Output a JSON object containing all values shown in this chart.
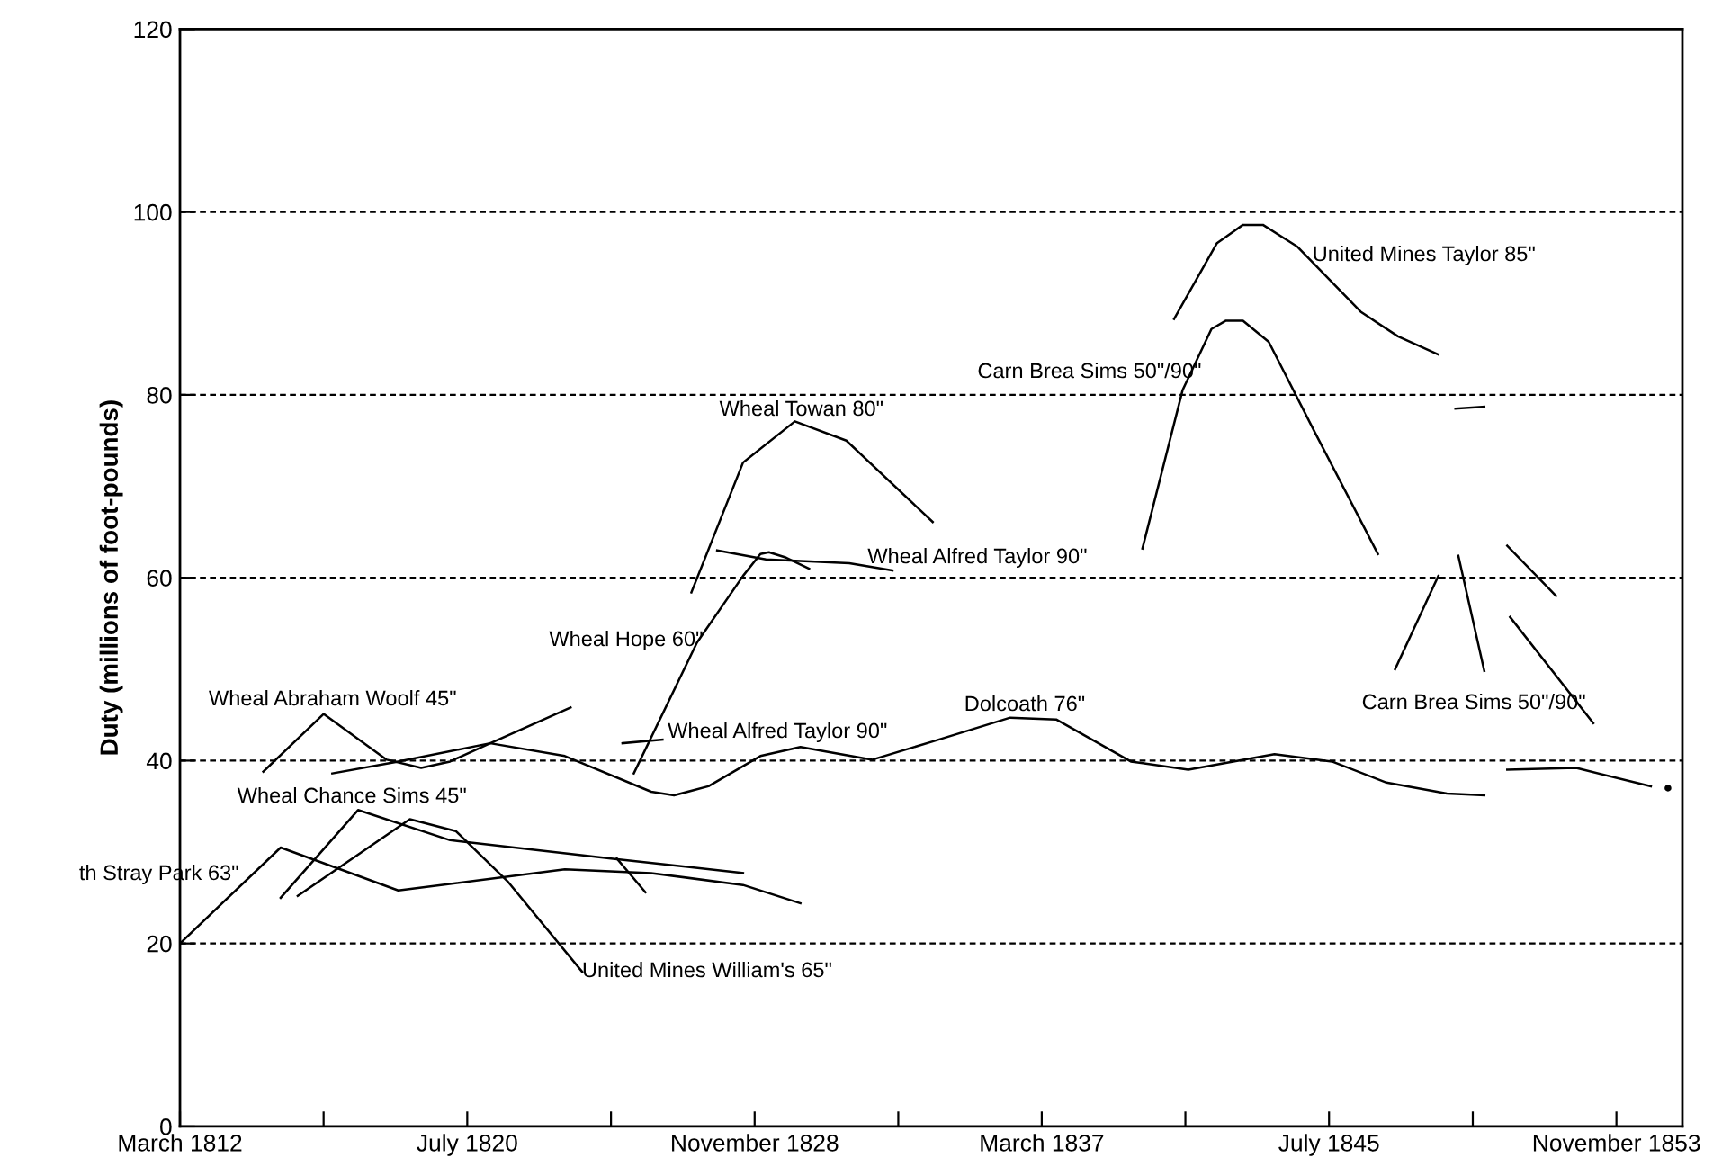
{
  "chart_data": {
    "type": "line",
    "ylabel": "Duty (millions of foot-pounds)",
    "xlim": [
      "1812-03",
      "1855-10"
    ],
    "xticks": [
      {
        "value": "1812-03",
        "label": "March 1812"
      },
      {
        "value": "1816-05",
        "label": null
      },
      {
        "value": "1820-07",
        "label": "July 1820"
      },
      {
        "value": "1824-09",
        "label": null
      },
      {
        "value": "1828-11",
        "label": "November 1828"
      },
      {
        "value": "1833-01",
        "label": null
      },
      {
        "value": "1837-03",
        "label": "March 1837"
      },
      {
        "value": "1841-05",
        "label": null
      },
      {
        "value": "1845-07",
        "label": "July 1845"
      },
      {
        "value": "1849-09",
        "label": null
      },
      {
        "value": "1853-11",
        "label": "November 1853"
      }
    ],
    "ylim": [
      0,
      120
    ],
    "yticks": [
      0,
      20,
      40,
      60,
      80,
      100,
      120
    ],
    "grid": "y",
    "line_style": "solid",
    "series": [
      {
        "color": "#000000",
        "x": [
          "1812-03",
          "1815-02",
          "1818-07",
          "1823-05",
          "1825-11",
          "1828-07",
          "1830-03"
        ],
        "values": [
          20,
          30.5,
          25.8,
          28.1,
          27.7,
          26.4,
          24.4
        ]
      },
      {
        "color": "#000000",
        "x": [
          "1815-02",
          "1817-05",
          "1820-01",
          "1824-09",
          "1828-07"
        ],
        "values": [
          25,
          34.6,
          31.3,
          29.3,
          27.7
        ]
      },
      {
        "color": "#000000",
        "x": [
          "1824-11",
          "1825-09"
        ],
        "values": [
          29.3,
          25.6
        ]
      },
      {
        "color": "#000000",
        "x": [
          "1815-08",
          "1818-11",
          "1820-03",
          "1821-09",
          "1823-11"
        ],
        "values": [
          25.2,
          33.6,
          32.3,
          26.8,
          16.9
        ]
      },
      {
        "color": "#000000",
        "x": [
          "1814-08",
          "1816-05",
          "1818-03",
          "1819-03",
          "1820-01",
          "1821-03",
          "1823-07"
        ],
        "values": [
          38.8,
          45.1,
          40.1,
          39.2,
          39.9,
          41.9,
          45.8
        ]
      },
      {
        "color": "#000000",
        "x": [
          "1816-08",
          "1818-07",
          "1821-03",
          "1823-05",
          "1825-11",
          "1826-07",
          "1827-07",
          "1829-01",
          "1830-03",
          "1832-04",
          "1834-01",
          "1836-04",
          "1837-08",
          "1839-10",
          "1841-06",
          "1843-12",
          "1845-08",
          "1847-03",
          "1848-12",
          "1850-01"
        ],
        "values": [
          38.6,
          39.9,
          41.9,
          40.5,
          36.6,
          36.2,
          37.2,
          40.5,
          41.5,
          40.1,
          42.1,
          44.7,
          44.5,
          39.9,
          39.0,
          40.7,
          39.9,
          37.6,
          36.4,
          36.2
        ]
      },
      {
        "color": "#000000",
        "x": [
          "1850-09",
          "1852-09",
          "1854-11"
        ],
        "values": [
          39.0,
          39.2,
          37.2
        ]
      },
      {
        "type": "scatter",
        "marker": "circle",
        "color": "#000000",
        "x": [
          "1855-05"
        ],
        "values": [
          37.0
        ]
      },
      {
        "color": "#000000",
        "x": [
          "1825-01",
          "1826-03"
        ],
        "values": [
          41.9,
          42.3
        ]
      },
      {
        "color": "#000000",
        "x": [
          "1825-05",
          "1827-03",
          "1828-07",
          "1829-01",
          "1829-04",
          "1829-10",
          "1830-06"
        ],
        "values": [
          38.6,
          52.9,
          60.2,
          62.6,
          62.8,
          62.2,
          61.0
        ]
      },
      {
        "color": "#000000",
        "x": [
          "1827-10",
          "1829-03",
          "1831-08",
          "1832-11"
        ],
        "values": [
          63.0,
          62.0,
          61.6,
          60.8
        ]
      },
      {
        "color": "#000000",
        "x": [
          "1827-01",
          "1828-07",
          "1830-01",
          "1831-07",
          "1834-01"
        ],
        "values": [
          58.4,
          72.6,
          77.1,
          75.0,
          66.1
        ]
      },
      {
        "color": "#000000",
        "x": [
          "1841-01",
          "1842-04",
          "1843-01",
          "1843-08",
          "1844-08",
          "1846-06",
          "1847-07",
          "1848-09"
        ],
        "values": [
          88.3,
          96.6,
          98.6,
          98.6,
          96.2,
          89.1,
          86.4,
          84.4
        ]
      },
      {
        "color": "#000000",
        "x": [
          "1840-02",
          "1841-04",
          "1842-02",
          "1842-07",
          "1843-01",
          "1843-10",
          "1845-02",
          "1846-12"
        ],
        "values": [
          63.2,
          80.5,
          87.2,
          88.1,
          88.1,
          85.8,
          75.9,
          62.6
        ]
      },
      {
        "color": "#000000",
        "x": [
          "1849-03",
          "1850-01"
        ],
        "values": [
          78.5,
          78.7
        ]
      },
      {
        "color": "#000000",
        "x": [
          "1847-06",
          "1848-09"
        ],
        "values": [
          50.0,
          60.2
        ]
      },
      {
        "color": "#000000",
        "x": [
          "1849-04",
          "1850-01"
        ],
        "values": [
          62.4,
          49.8
        ]
      },
      {
        "color": "#000000",
        "x": [
          "1850-09",
          "1852-02"
        ],
        "values": [
          63.5,
          58.0
        ]
      },
      {
        "color": "#000000",
        "x": [
          "1850-10",
          "1853-03"
        ],
        "values": [
          55.7,
          44.1
        ]
      }
    ],
    "annotations": [
      "United Mines Taylor 85\"",
      "Carn Brea Sims 50\"/90\"",
      "Wheal Towan 80\"",
      "Wheal Alfred Taylor 90\"",
      "Wheal Hope 60\"",
      "Wheal Alfred Taylor 90\"",
      "Dolcoath 76\"",
      "Carn Brea Sims 50\"/90\"",
      "Wheal Abraham Woolf 45\"",
      "Wheal Chance Sims 45\"",
      "th Stray Park 63\"",
      "United Mines William's 65\""
    ]
  }
}
